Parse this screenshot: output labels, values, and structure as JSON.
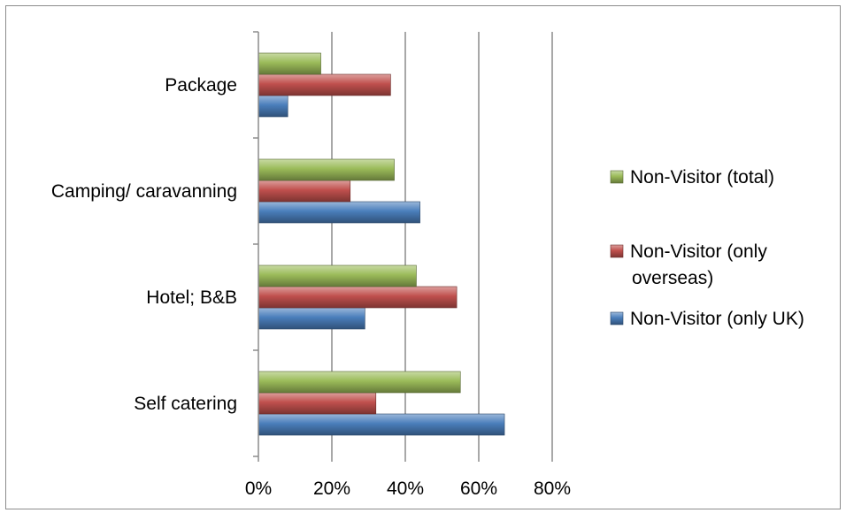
{
  "chart_data": {
    "type": "bar",
    "orientation": "horizontal",
    "categories": [
      "Self catering",
      "Hotel; B&B",
      "Camping/ caravanning",
      "Package"
    ],
    "series": [
      {
        "name": "Non-Visitor (only UK)",
        "values": [
          67,
          29,
          44,
          8
        ],
        "color": "#4a7ebb"
      },
      {
        "name": "Non-Visitor (only overseas)",
        "values": [
          32,
          54,
          25,
          36
        ],
        "color": "#c0504d"
      },
      {
        "name": "Non-Visitor (total)",
        "values": [
          55,
          43,
          37,
          17
        ],
        "color": "#9bbb59"
      }
    ],
    "xlim": [
      0,
      80
    ],
    "xticks": [
      "0%",
      "20%",
      "40%",
      "60%",
      "80%"
    ],
    "xtick_values": [
      0,
      20,
      40,
      60,
      80
    ],
    "grid": true,
    "legend_position": "right",
    "legend_order": [
      2,
      1,
      0
    ],
    "legend_lines": [
      [
        "Non-Visitor (total)"
      ],
      [
        "Non-Visitor (only",
        "overseas)"
      ],
      [
        "Non-Visitor (only UK)"
      ]
    ]
  }
}
